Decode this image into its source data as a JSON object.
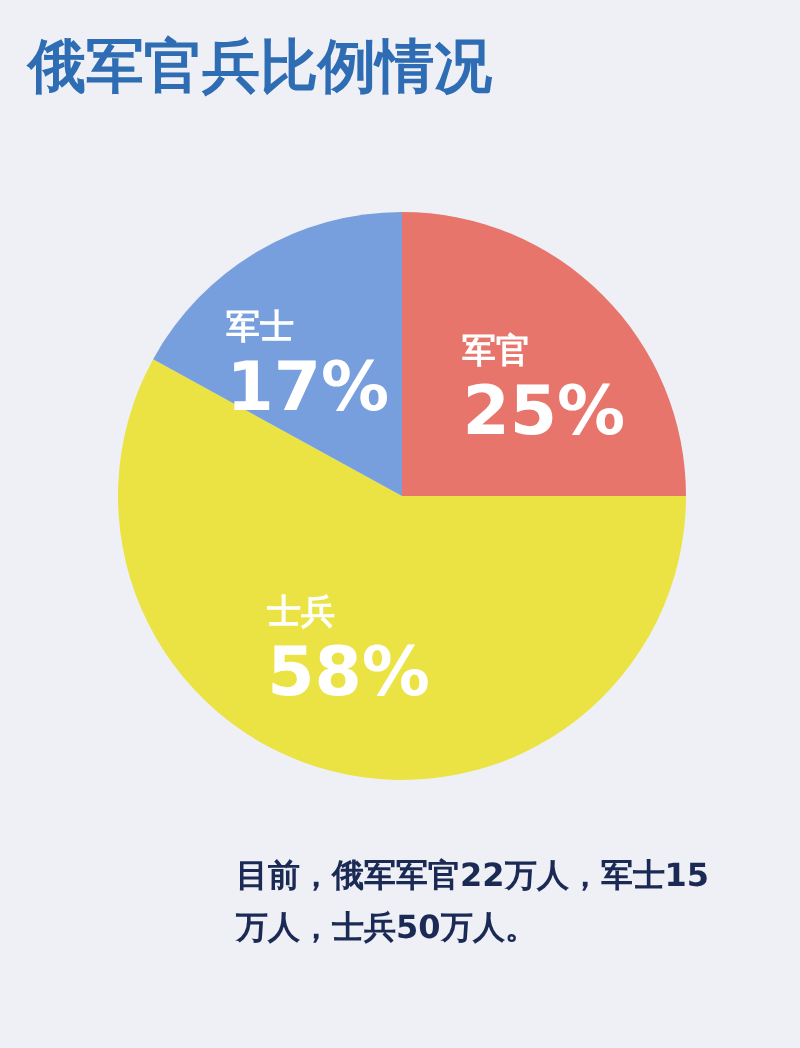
{
  "chart_data": {
    "type": "pie",
    "title": "俄军官兵比例情况",
    "categories": [
      "军官",
      "士兵",
      "军士"
    ],
    "values": [
      25,
      58,
      17
    ],
    "value_labels": [
      "25%",
      "58%",
      "17%"
    ],
    "colors": [
      "#e8756b",
      "#ebe343",
      "#779fdd"
    ],
    "annotations": [
      "目前，俄军军官22万人，军士15万人，士兵50万人。"
    ]
  }
}
